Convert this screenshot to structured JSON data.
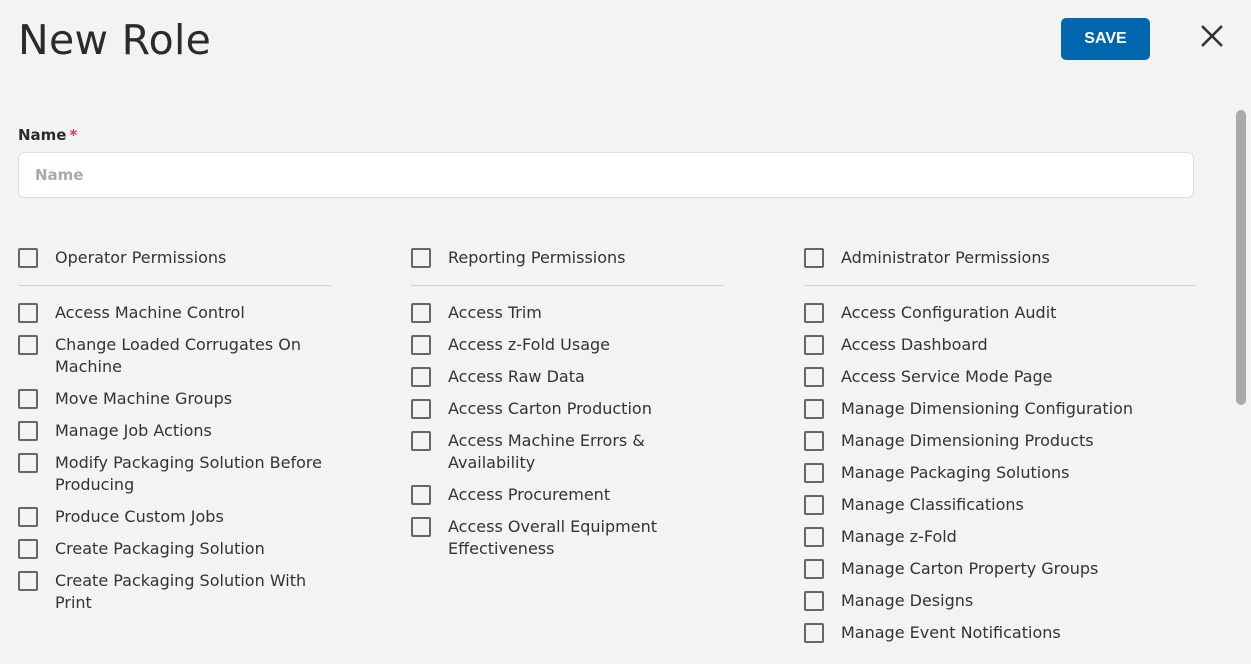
{
  "header": {
    "title": "New Role",
    "save_label": "SAVE",
    "close_icon": "close-icon"
  },
  "form": {
    "name_label": "Name",
    "required_mark": "*",
    "name_placeholder": "Name",
    "name_value": ""
  },
  "colors": {
    "accent": "#0067ae",
    "required": "#e53945"
  },
  "groups": [
    {
      "title": "Operator Permissions",
      "items": [
        "Access Machine Control",
        "Change Loaded Corrugates On Machine",
        "Move Machine Groups",
        "Manage Job Actions",
        "Modify Packaging Solution Before Producing",
        "Produce Custom Jobs",
        "Create Packaging Solution",
        "Create Packaging Solution With Print"
      ]
    },
    {
      "title": "Reporting Permissions",
      "items": [
        "Access Trim",
        "Access z-Fold Usage",
        "Access Raw Data",
        "Access Carton Production",
        "Access Machine Errors & Availability",
        "Access Procurement",
        "Access Overall Equipment Effectiveness"
      ]
    },
    {
      "title": "Administrator Permissions",
      "items": [
        "Access Configuration Audit",
        "Access Dashboard",
        "Access Service Mode Page",
        "Manage Dimensioning Configuration",
        "Manage Dimensioning Products",
        "Manage Packaging Solutions",
        "Manage Classifications",
        "Manage z-Fold",
        "Manage Carton Property Groups",
        "Manage Designs",
        "Manage Event Notifications"
      ]
    }
  ]
}
